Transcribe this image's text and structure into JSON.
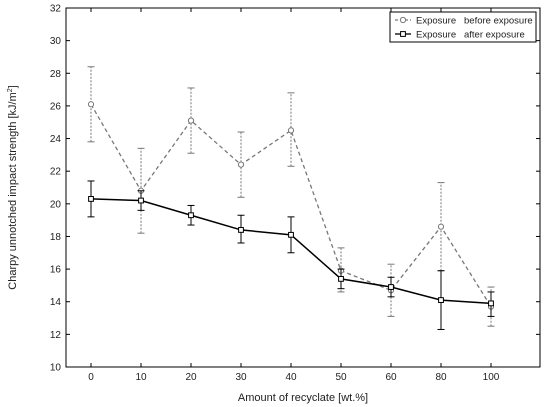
{
  "chart_data": {
    "type": "line",
    "xlabel": "Amount of recyclate [wt.%]",
    "ylabel_main": "Charpy unnotched impact strength [kJ/m",
    "ylabel_sup": "2",
    "ylabel_end": "]",
    "categories": [
      "0",
      "10",
      "20",
      "30",
      "40",
      "50",
      "60",
      "80",
      "100"
    ],
    "ylim": [
      10,
      32
    ],
    "yticks": [
      10,
      12,
      14,
      16,
      18,
      20,
      22,
      24,
      26,
      28,
      30,
      32
    ],
    "grid": false,
    "legend_position": "top-right",
    "series": [
      {
        "key": "before",
        "legend_name": "Exposure",
        "legend_value": "before exposure",
        "style": "dashed",
        "marker": "circle",
        "color": "#777777",
        "values": [
          26.1,
          20.8,
          25.1,
          22.4,
          24.5,
          15.9,
          14.7,
          18.6,
          13.7
        ],
        "err_low": [
          23.8,
          18.2,
          23.1,
          20.4,
          22.3,
          14.6,
          13.1,
          15.9,
          12.5
        ],
        "err_high": [
          28.4,
          23.4,
          27.1,
          24.4,
          26.8,
          17.3,
          16.3,
          21.3,
          14.9
        ]
      },
      {
        "key": "after",
        "legend_name": "Exposure",
        "legend_value": "after exposure",
        "style": "solid",
        "marker": "square",
        "color": "#000000",
        "values": [
          20.3,
          20.2,
          19.3,
          18.4,
          18.1,
          15.4,
          14.9,
          14.1,
          13.9
        ],
        "err_low": [
          19.2,
          19.6,
          18.7,
          17.6,
          17.0,
          14.8,
          14.3,
          12.3,
          13.1
        ],
        "err_high": [
          21.4,
          20.8,
          19.9,
          19.3,
          19.2,
          16.0,
          15.5,
          15.9,
          14.6
        ]
      }
    ]
  }
}
